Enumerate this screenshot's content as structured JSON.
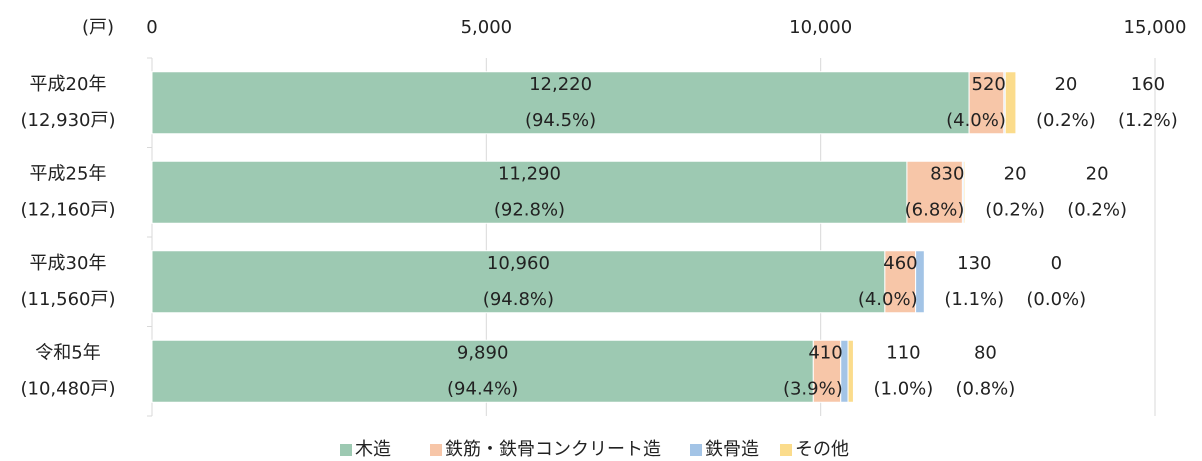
{
  "chart_data": {
    "type": "bar",
    "orientation": "horizontal",
    "stacked": true,
    "axis_unit_label": "(戸)",
    "categories": [
      "平成20年",
      "平成25年",
      "平成30年",
      "令和5年"
    ],
    "category_sublabels": [
      "(12,930戸)",
      "(12,160戸)",
      "(11,560戸)",
      "(10,480戸)"
    ],
    "series": [
      {
        "name": "木造",
        "color": "#9dc9b2",
        "values": [
          12220,
          11290,
          10960,
          9890
        ],
        "value_labels": [
          "12,220",
          "11,290",
          "10,960",
          "9,890"
        ],
        "percent_labels": [
          "(94.5%)",
          "(92.8%)",
          "(94.8%)",
          "(94.4%)"
        ]
      },
      {
        "name": "鉄筋・鉄骨コンクリート造",
        "color": "#f7c6a8",
        "values": [
          520,
          830,
          460,
          410
        ],
        "percent_labels": [
          "(4.0%)",
          "(6.8%)",
          "(4.0%)",
          "(3.9%)"
        ]
      },
      {
        "name": "鉄骨造",
        "color": "#a3c4e6",
        "values": [
          20,
          20,
          130,
          110
        ],
        "percent_labels": [
          "(0.2%)",
          "(0.2%)",
          "(1.1%)",
          "(1.0%)"
        ]
      },
      {
        "name": "その他",
        "color": "#fbdc8c",
        "values": [
          160,
          20,
          0,
          80
        ],
        "percent_labels": [
          "(1.2%)",
          "(0.2%)",
          "(0.0%)",
          "(0.8%)"
        ]
      }
    ],
    "xlim": [
      0,
      15000
    ],
    "xticks": [
      0,
      {
        "value": 5000,
        "label": "5,000"
      },
      {
        "value": 10000,
        "label": "10,000"
      },
      {
        "value": 15000,
        "label": "15,000"
      }
    ],
    "grid": true,
    "legend": "bottom"
  }
}
